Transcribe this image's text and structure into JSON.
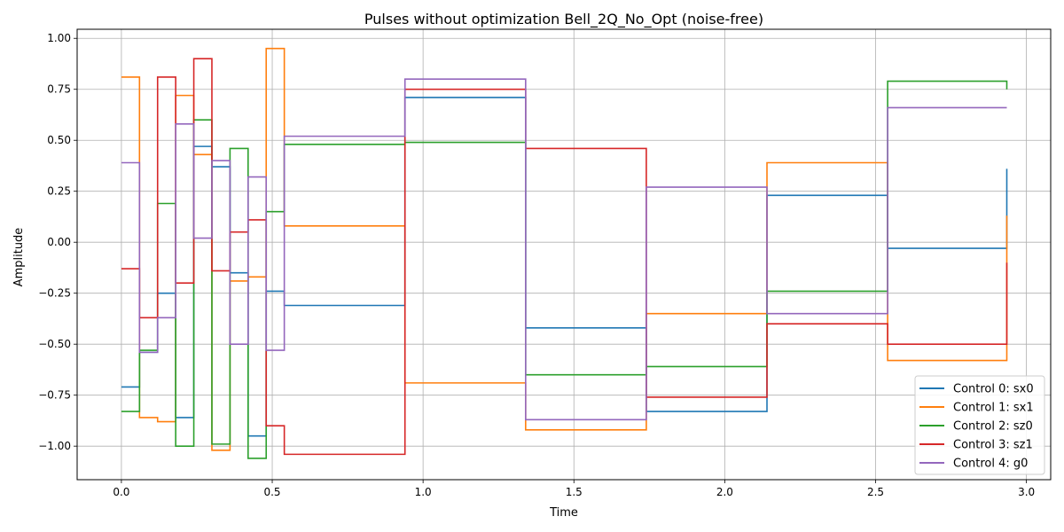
{
  "chart_data": {
    "type": "line",
    "step": "post",
    "title": "Pulses without optimization Bell_2Q_No_Opt (noise-free)",
    "xlabel": "Time",
    "ylabel": "Amplitude",
    "xlim": [
      -0.1467,
      3.0805
    ],
    "ylim": [
      -1.1645,
      1.0445
    ],
    "xticks": [
      0.0,
      0.5,
      1.0,
      1.5,
      2.0,
      2.5,
      3.0
    ],
    "xtick_labels": [
      "0.0",
      "0.5",
      "1.0",
      "1.5",
      "2.0",
      "2.5",
      "3.0"
    ],
    "yticks": [
      -1.0,
      -0.75,
      -0.5,
      -0.25,
      0.0,
      0.25,
      0.5,
      0.75,
      1.0
    ],
    "ytick_labels": [
      "−1.00",
      "−0.75",
      "−0.50",
      "−0.25",
      "0.00",
      "0.25",
      "0.50",
      "0.75",
      "1.00"
    ],
    "grid": true,
    "legend_position": "lower right",
    "x": [
      0.0,
      0.06,
      0.12,
      0.18,
      0.24,
      0.3,
      0.36,
      0.42,
      0.48,
      0.54,
      0.94,
      1.34,
      1.74,
      2.14,
      2.54,
      2.935
    ],
    "series": [
      {
        "name": "Control 0: sx0",
        "color": "#1f77b4",
        "values": [
          -0.71,
          -0.54,
          -0.25,
          -0.86,
          0.47,
          0.37,
          -0.15,
          -0.95,
          -0.24,
          -0.31,
          0.71,
          -0.42,
          -0.83,
          0.23,
          -0.03,
          0.36
        ]
      },
      {
        "name": "Control 1: sx1",
        "color": "#ff7f0e",
        "values": [
          0.81,
          -0.86,
          -0.88,
          0.72,
          0.43,
          -1.02,
          -0.19,
          -0.17,
          0.95,
          0.08,
          -0.69,
          -0.92,
          -0.35,
          0.39,
          -0.58,
          0.13
        ]
      },
      {
        "name": "Control 2: sz0",
        "color": "#2ca02c",
        "values": [
          -0.83,
          -0.53,
          0.19,
          -1.0,
          0.6,
          -0.99,
          0.46,
          -1.06,
          0.15,
          0.48,
          0.49,
          -0.65,
          -0.61,
          -0.24,
          0.79,
          0.75
        ]
      },
      {
        "name": "Control 3: sz1",
        "color": "#d62728",
        "values": [
          -0.13,
          -0.37,
          0.81,
          -0.2,
          0.9,
          -0.14,
          0.05,
          0.11,
          -0.9,
          -1.04,
          0.75,
          0.46,
          -0.76,
          -0.4,
          -0.5,
          -0.1
        ]
      },
      {
        "name": "Control 4: g0",
        "color": "#9467bd",
        "values": [
          0.39,
          -0.54,
          -0.37,
          0.58,
          0.02,
          0.4,
          -0.5,
          0.32,
          -0.53,
          0.52,
          0.8,
          -0.87,
          0.27,
          -0.35,
          0.66,
          0.66
        ]
      }
    ]
  }
}
